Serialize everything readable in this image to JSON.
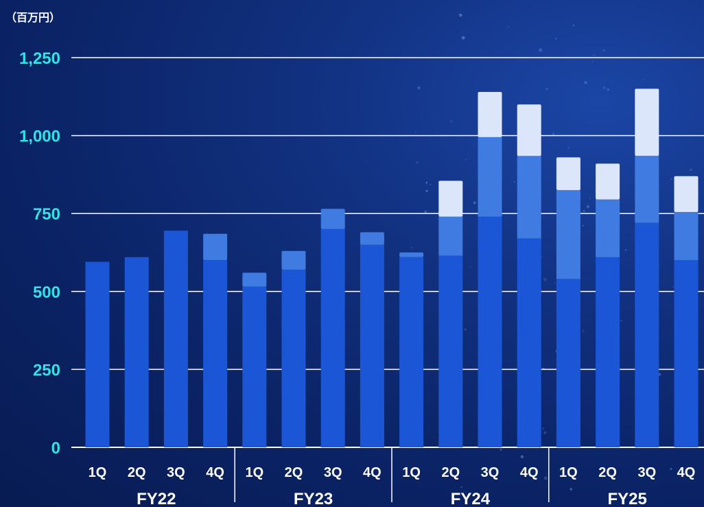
{
  "chart_data": {
    "type": "bar",
    "stacked": true,
    "unit_label": "（百万円）",
    "groups": [
      "FY22",
      "FY23",
      "FY24",
      "FY25"
    ],
    "categories": [
      "1Q",
      "2Q",
      "3Q",
      "4Q",
      "1Q",
      "2Q",
      "3Q",
      "4Q",
      "1Q",
      "2Q",
      "3Q",
      "4Q",
      "1Q",
      "2Q",
      "3Q",
      "4Q"
    ],
    "series": [
      {
        "values": [
          595,
          610,
          695,
          600,
          515,
          570,
          700,
          650,
          610,
          615,
          740,
          670,
          540,
          610,
          720,
          600
        ]
      },
      {
        "values": [
          0,
          0,
          0,
          85,
          45,
          60,
          65,
          40,
          15,
          125,
          255,
          265,
          285,
          185,
          215,
          155
        ]
      },
      {
        "values": [
          0,
          0,
          0,
          0,
          0,
          0,
          0,
          0,
          0,
          115,
          145,
          165,
          105,
          115,
          215,
          115
        ]
      }
    ],
    "series_colors": [
      "#1a56d6",
      "#3f7be0",
      "#dbe6fb"
    ],
    "yticks": [
      0,
      250,
      500,
      750,
      "1,000",
      "1,250"
    ],
    "ylim": [
      0,
      1250
    ],
    "grid": true
  }
}
